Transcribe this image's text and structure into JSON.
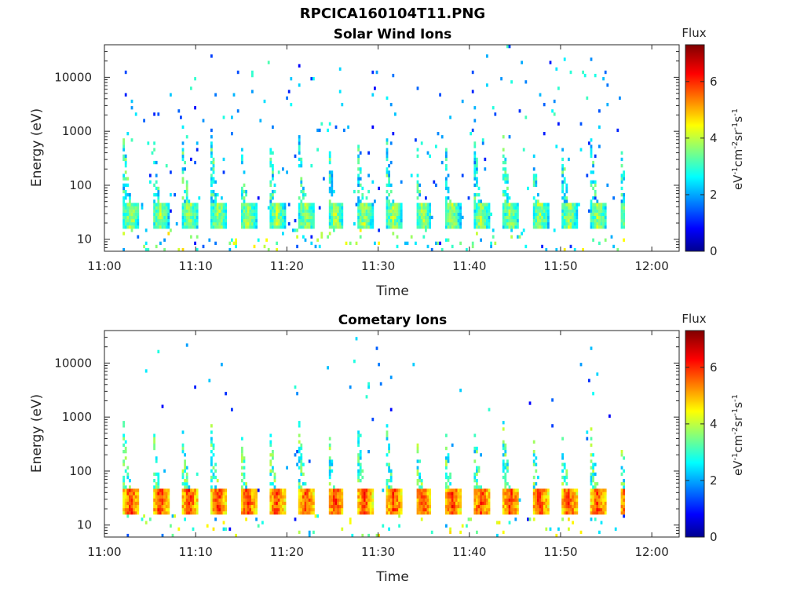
{
  "figure_title": "RPCICA160104T11.PNG",
  "chart_data": [
    {
      "type": "heatmap",
      "title": "Solar Wind Ions",
      "xlabel": "Time",
      "ylabel": "Energy (eV)",
      "yscale": "log",
      "ylim": [
        6,
        40000
      ],
      "xlim": [
        "11:00",
        "12:03"
      ],
      "x_ticks": [
        "11:00",
        "11:10",
        "11:20",
        "11:30",
        "11:40",
        "11:50",
        "12:00"
      ],
      "y_ticks": [
        "10",
        "100",
        "1000",
        "10000"
      ],
      "colorbar": {
        "title": "Flux",
        "label": "eV⁻¹cm⁻²sr⁻¹s⁻¹",
        "ticks": [
          "0",
          "2",
          "4",
          "6"
        ],
        "range": [
          0,
          7.3
        ],
        "colormap": "jet"
      },
      "data_time_range": [
        "11:02",
        "11:57"
      ],
      "scan_cycle_minutes": 3.2,
      "description_points": {
        "background_level": 3.0,
        "core_energy_eV": [
          15,
          45
        ],
        "core_level": 4.0
      }
    },
    {
      "type": "heatmap",
      "title": "Cometary Ions",
      "xlabel": "Time",
      "ylabel": "Energy (eV)",
      "yscale": "log",
      "ylim": [
        6,
        40000
      ],
      "xlim": [
        "11:00",
        "12:03"
      ],
      "x_ticks": [
        "11:00",
        "11:10",
        "11:20",
        "11:30",
        "11:40",
        "11:50",
        "12:00"
      ],
      "y_ticks": [
        "10",
        "100",
        "1000",
        "10000"
      ],
      "colorbar": {
        "title": "Flux",
        "label": "eV⁻¹cm⁻²sr⁻¹s⁻¹",
        "ticks": [
          "0",
          "2",
          "4",
          "6"
        ],
        "range": [
          0,
          7.3
        ],
        "colormap": "jet"
      },
      "data_time_range": [
        "11:02",
        "11:57"
      ],
      "scan_cycle_minutes": 3.2,
      "description_points": {
        "background_level": 2.8,
        "core_energy_eV": [
          15,
          45
        ],
        "core_level": 6.0
      }
    }
  ]
}
